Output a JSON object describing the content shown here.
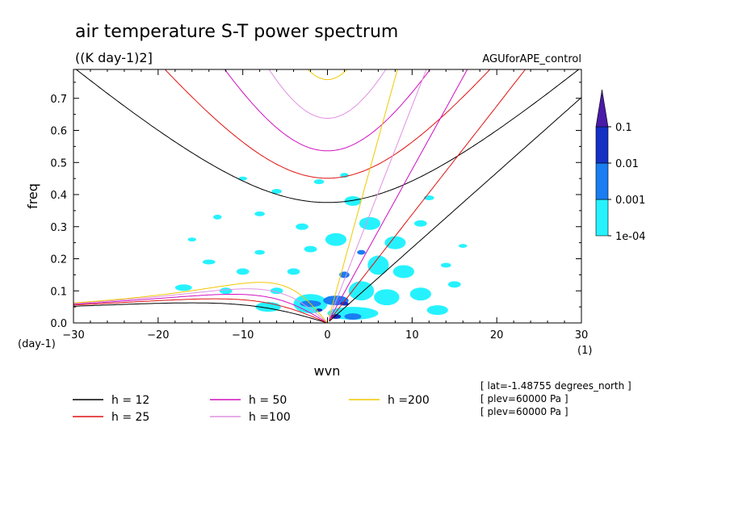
{
  "chart_data": {
    "type": "heatmap",
    "title": "air temperature S-T power spectrum",
    "units": "((K day-1)2]",
    "experiment": "AGUforAPE_control",
    "xlabel": "wvn",
    "x_unit": "(1)",
    "ylabel": "freq",
    "y_unit": "(day-1)",
    "xlim": [
      -30,
      30
    ],
    "ylim": [
      0,
      0.79
    ],
    "x_ticks": [
      -30,
      -20,
      -10,
      0,
      10,
      20,
      30
    ],
    "y_ticks": [
      0.0,
      0.1,
      0.2,
      0.3,
      0.4,
      0.5,
      0.6,
      0.7
    ],
    "colorbar": {
      "levels": [
        "1e-04",
        "0.001",
        "0.01",
        "0.1"
      ],
      "colors": [
        "#26f2ff",
        "#1a7df2",
        "#1530c4",
        "#4a1aa8"
      ]
    },
    "legend": [
      {
        "label": "h = 12",
        "h": 12,
        "color": "#000000"
      },
      {
        "label": "h = 25",
        "h": 25,
        "color": "#e01010"
      },
      {
        "label": "h = 50",
        "h": 50,
        "color": "#d010c0"
      },
      {
        "label": "h =100",
        "h": 100,
        "color": "#e090e0"
      },
      {
        "label": "h =200",
        "h": 200,
        "color": "#f0c800"
      }
    ],
    "annotations": [
      "[ lat=-1.48755 degrees_north ]",
      "[ plev=60000 Pa ]",
      "[ plev=60000 Pa ]"
    ],
    "power_regions": [
      {
        "level": "1e-04",
        "x": -10,
        "y": 0.16,
        "w": 1.5,
        "h": 0.02
      },
      {
        "level": "1e-04",
        "x": -14,
        "y": 0.19,
        "w": 1.5,
        "h": 0.015
      },
      {
        "level": "1e-04",
        "x": -17,
        "y": 0.11,
        "w": 2.0,
        "h": 0.02
      },
      {
        "level": "1e-04",
        "x": -6,
        "y": 0.1,
        "w": 1.5,
        "h": 0.02
      },
      {
        "level": "1e-04",
        "x": -3,
        "y": 0.3,
        "w": 1.5,
        "h": 0.02
      },
      {
        "level": "1e-04",
        "x": -6,
        "y": 0.41,
        "w": 1.2,
        "h": 0.015
      },
      {
        "level": "1e-04",
        "x": -8,
        "y": 0.34,
        "w": 1.2,
        "h": 0.015
      },
      {
        "level": "1e-04",
        "x": -13,
        "y": 0.33,
        "w": 1.0,
        "h": 0.015
      },
      {
        "level": "1e-04",
        "x": -2,
        "y": 0.23,
        "w": 1.5,
        "h": 0.02
      },
      {
        "level": "1e-04",
        "x": -4,
        "y": 0.16,
        "w": 1.5,
        "h": 0.02
      },
      {
        "level": "1e-04",
        "x": -8,
        "y": 0.22,
        "w": 1.2,
        "h": 0.015
      },
      {
        "level": "1e-04",
        "x": -16,
        "y": 0.26,
        "w": 1.0,
        "h": 0.012
      },
      {
        "level": "1e-04",
        "x": 1,
        "y": 0.26,
        "w": 2.5,
        "h": 0.04
      },
      {
        "level": "1e-04",
        "x": 3,
        "y": 0.38,
        "w": 2.0,
        "h": 0.03
      },
      {
        "level": "1e-04",
        "x": 2,
        "y": 0.46,
        "w": 1.0,
        "h": 0.015
      },
      {
        "level": "1e-04",
        "x": -1,
        "y": 0.44,
        "w": 1.2,
        "h": 0.015
      },
      {
        "level": "1e-04",
        "x": 5,
        "y": 0.31,
        "w": 2.5,
        "h": 0.04
      },
      {
        "level": "1e-04",
        "x": 8,
        "y": 0.25,
        "w": 2.5,
        "h": 0.04
      },
      {
        "level": "1e-04",
        "x": 9,
        "y": 0.16,
        "w": 2.5,
        "h": 0.04
      },
      {
        "level": "1e-04",
        "x": 6,
        "y": 0.18,
        "w": 2.5,
        "h": 0.06
      },
      {
        "level": "1e-04",
        "x": 4,
        "y": 0.1,
        "w": 3.0,
        "h": 0.06
      },
      {
        "level": "1e-04",
        "x": 7,
        "y": 0.08,
        "w": 3.0,
        "h": 0.05
      },
      {
        "level": "1e-04",
        "x": 11,
        "y": 0.09,
        "w": 2.5,
        "h": 0.04
      },
      {
        "level": "1e-04",
        "x": 13,
        "y": 0.04,
        "w": 2.5,
        "h": 0.03
      },
      {
        "level": "1e-04",
        "x": 3,
        "y": 0.03,
        "w": 6.0,
        "h": 0.04
      },
      {
        "level": "1e-04",
        "x": -2,
        "y": 0.06,
        "w": 4.0,
        "h": 0.06
      },
      {
        "level": "1e-04",
        "x": -7,
        "y": 0.05,
        "w": 3.0,
        "h": 0.03
      },
      {
        "level": "1e-04",
        "x": 15,
        "y": 0.12,
        "w": 1.5,
        "h": 0.02
      },
      {
        "level": "1e-04",
        "x": 11,
        "y": 0.31,
        "w": 1.5,
        "h": 0.02
      },
      {
        "level": "1e-04",
        "x": 12,
        "y": 0.39,
        "w": 1.2,
        "h": 0.015
      },
      {
        "level": "1e-04",
        "x": 16,
        "y": 0.24,
        "w": 1.0,
        "h": 0.012
      },
      {
        "level": "1e-04",
        "x": 14,
        "y": 0.18,
        "w": 1.2,
        "h": 0.015
      },
      {
        "level": "1e-04",
        "x": -10,
        "y": 0.45,
        "w": 1.0,
        "h": 0.012
      },
      {
        "level": "1e-04",
        "x": -12,
        "y": 0.1,
        "w": 1.5,
        "h": 0.02
      },
      {
        "level": "0.001",
        "x": 1,
        "y": 0.07,
        "w": 3.0,
        "h": 0.03
      },
      {
        "level": "0.001",
        "x": -2,
        "y": 0.06,
        "w": 2.5,
        "h": 0.02
      },
      {
        "level": "0.001",
        "x": 2,
        "y": 0.15,
        "w": 1.2,
        "h": 0.02
      },
      {
        "level": "0.001",
        "x": 4,
        "y": 0.22,
        "w": 1.0,
        "h": 0.015
      },
      {
        "level": "0.001",
        "x": 3,
        "y": 0.02,
        "w": 2.0,
        "h": 0.02
      },
      {
        "level": "0.01",
        "x": 1,
        "y": 0.02,
        "w": 1.2,
        "h": 0.015
      },
      {
        "level": "0.01",
        "x": 2,
        "y": 0.06,
        "w": 1.0,
        "h": 0.012
      },
      {
        "level": "0.01",
        "x": -1,
        "y": 0.04,
        "w": 0.8,
        "h": 0.01
      }
    ]
  }
}
